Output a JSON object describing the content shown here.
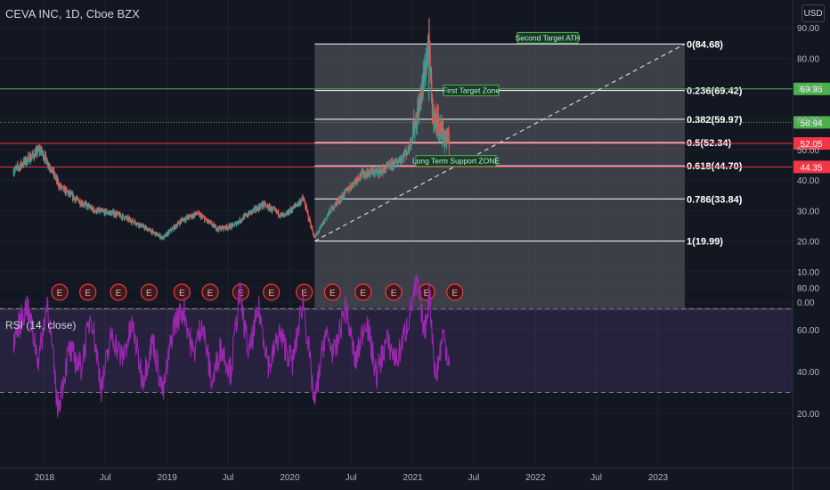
{
  "header": {
    "title": "CEVA INC, 1D, Cboe BZX",
    "currency": "USD"
  },
  "rsi_header": "RSI (14, close)",
  "colors": {
    "background": "#131722",
    "candle_up": "#26a69a",
    "candle_down": "#ef5350",
    "rsi_line": "#9c27b0",
    "green_level": "#4caf50",
    "red_level": "#f23645",
    "fib_line": "#ffffff"
  },
  "chart_data": [
    {
      "type": "candlestick",
      "ylim": [
        0,
        95
      ],
      "y_ticks": [
        "0.00",
        "10.00",
        "20.00",
        "30.00",
        "40.00",
        "50.00",
        "60.00",
        "70.00",
        "80.00",
        "90.00"
      ],
      "x_ticks": [
        "2018",
        "Jul",
        "2019",
        "Jul",
        "2020",
        "Jul",
        "2021",
        "Jul",
        "2022",
        "Jul",
        "2023"
      ],
      "price_path": [
        [
          "2017-10-01",
          43
        ],
        [
          "2017-11-15",
          47
        ],
        [
          "2017-12-20",
          50
        ],
        [
          "2018-01-20",
          44
        ],
        [
          "2018-02-15",
          38
        ],
        [
          "2018-04-01",
          34
        ],
        [
          "2018-06-01",
          30
        ],
        [
          "2018-08-01",
          29
        ],
        [
          "2018-10-01",
          26
        ],
        [
          "2018-12-20",
          21
        ],
        [
          "2019-02-15",
          27
        ],
        [
          "2019-04-01",
          29
        ],
        [
          "2019-06-01",
          24
        ],
        [
          "2019-07-15",
          25
        ],
        [
          "2019-09-01",
          29
        ],
        [
          "2019-10-15",
          32
        ],
        [
          "2019-12-15",
          28
        ],
        [
          "2020-02-10",
          34
        ],
        [
          "2020-03-15",
          21
        ],
        [
          "2020-05-01",
          30
        ],
        [
          "2020-06-15",
          36
        ],
        [
          "2020-08-01",
          42
        ],
        [
          "2020-10-01",
          43
        ],
        [
          "2020-11-15",
          46
        ],
        [
          "2020-12-20",
          50
        ],
        [
          "2021-01-20",
          64
        ],
        [
          "2021-02-01",
          72
        ],
        [
          "2021-02-18",
          84.68
        ],
        [
          "2021-03-01",
          62
        ],
        [
          "2021-04-01",
          55
        ],
        [
          "2021-04-20",
          52
        ]
      ],
      "fib_levels": [
        {
          "label": "0(84.68)",
          "value": 84.68
        },
        {
          "label": "0.236(69.42)",
          "value": 69.42
        },
        {
          "label": "0.382(59.97)",
          "value": 59.97
        },
        {
          "label": "0.5(52.34)",
          "value": 52.34
        },
        {
          "label": "0.618(44.70)",
          "value": 44.7
        },
        {
          "label": "0.786(33.84)",
          "value": 33.84
        },
        {
          "label": "1(19.99)",
          "value": 19.99
        }
      ],
      "horizontal_levels": [
        {
          "value": 69.96,
          "label": "69.96",
          "color": "#4caf50"
        },
        {
          "value": 58.94,
          "label": "58.94",
          "color": "#4caf50",
          "dotted": true
        },
        {
          "value": 52.05,
          "label": "52.05",
          "color": "#f23645"
        },
        {
          "value": 44.35,
          "label": "44.35",
          "color": "#f23645"
        }
      ],
      "annotations": [
        "Second Target ATH",
        "First Target Zone",
        "Long Term Support ZONE"
      ],
      "earnings_marker": "E",
      "earnings_dates": [
        "2018-02-15",
        "2018-05-10",
        "2018-08-09",
        "2018-11-08",
        "2019-02-14",
        "2019-05-09",
        "2019-08-08",
        "2019-11-07",
        "2020-02-13",
        "2020-05-07",
        "2020-08-06",
        "2020-11-05",
        "2021-02-11",
        "2021-05-06"
      ]
    },
    {
      "type": "line",
      "ylim": [
        15,
        90
      ],
      "y_ticks": [
        "20.00",
        "40.00",
        "60.00",
        "80.00"
      ],
      "bands": [
        30,
        70
      ],
      "rsi_path": [
        [
          "2017-10-01",
          55
        ],
        [
          "2017-11-10",
          72
        ],
        [
          "2017-12-15",
          45
        ],
        [
          "2018-01-10",
          74
        ],
        [
          "2018-02-10",
          22
        ],
        [
          "2018-03-15",
          50
        ],
        [
          "2018-04-20",
          42
        ],
        [
          "2018-05-20",
          68
        ],
        [
          "2018-06-20",
          32
        ],
        [
          "2018-07-20",
          58
        ],
        [
          "2018-08-20",
          46
        ],
        [
          "2018-09-20",
          62
        ],
        [
          "2018-10-20",
          36
        ],
        [
          "2018-11-20",
          55
        ],
        [
          "2018-12-20",
          29
        ],
        [
          "2019-01-20",
          62
        ],
        [
          "2019-02-20",
          70
        ],
        [
          "2019-03-20",
          48
        ],
        [
          "2019-04-15",
          64
        ],
        [
          "2019-05-15",
          34
        ],
        [
          "2019-06-10",
          52
        ],
        [
          "2019-07-10",
          40
        ],
        [
          "2019-08-05",
          78
        ],
        [
          "2019-09-01",
          48
        ],
        [
          "2019-10-01",
          70
        ],
        [
          "2019-11-01",
          42
        ],
        [
          "2019-12-01",
          58
        ],
        [
          "2020-01-10",
          44
        ],
        [
          "2020-02-10",
          75
        ],
        [
          "2020-03-15",
          24
        ],
        [
          "2020-04-15",
          58
        ],
        [
          "2020-05-15",
          48
        ],
        [
          "2020-06-15",
          72
        ],
        [
          "2020-07-15",
          44
        ],
        [
          "2020-08-15",
          66
        ],
        [
          "2020-09-15",
          38
        ],
        [
          "2020-10-15",
          55
        ],
        [
          "2020-11-15",
          45
        ],
        [
          "2020-12-15",
          62
        ],
        [
          "2021-01-15",
          83
        ],
        [
          "2021-02-05",
          58
        ],
        [
          "2021-02-20",
          78
        ],
        [
          "2021-03-10",
          36
        ],
        [
          "2021-04-01",
          58
        ],
        [
          "2021-04-20",
          45
        ]
      ]
    }
  ]
}
